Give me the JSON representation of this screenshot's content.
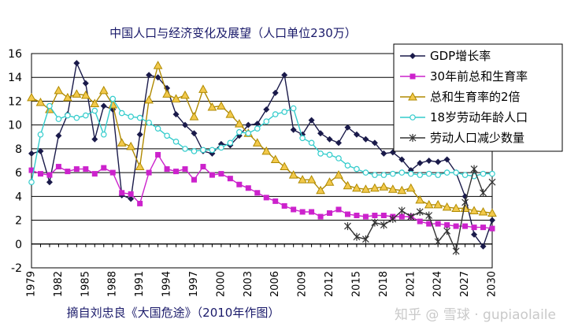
{
  "chart_data": {
    "type": "line",
    "title": "中国人口与经济变化及展望（人口单位230万）",
    "source": "摘自刘忠良《大国危途》（2010年作图）",
    "xlabel": "",
    "ylabel": "",
    "xlim": [
      1979,
      2030
    ],
    "ylim": [
      -2,
      16
    ],
    "grid": true,
    "legend_position": "top-right",
    "x_ticks": [
      1979,
      1982,
      1985,
      1988,
      1991,
      1994,
      1997,
      2000,
      2003,
      2006,
      2009,
      2012,
      2015,
      2018,
      2021,
      2024,
      2027,
      2030
    ],
    "y_ticks": [
      -2,
      0,
      2,
      4,
      6,
      8,
      10,
      12,
      14,
      16
    ],
    "series": [
      {
        "name": "GDP增长率",
        "color": "#1a1a4a",
        "marker": "diamond",
        "points": [
          [
            1979,
            7.6
          ],
          [
            1980,
            7.8
          ],
          [
            1981,
            5.2
          ],
          [
            1982,
            9.1
          ],
          [
            1983,
            10.9
          ],
          [
            1984,
            15.2
          ],
          [
            1985,
            13.5
          ],
          [
            1986,
            8.8
          ],
          [
            1987,
            11.6
          ],
          [
            1988,
            11.3
          ],
          [
            1989,
            4.1
          ],
          [
            1990,
            3.8
          ],
          [
            1991,
            9.2
          ],
          [
            1992,
            14.2
          ],
          [
            1993,
            14.0
          ],
          [
            1994,
            13.1
          ],
          [
            1995,
            10.9
          ],
          [
            1996,
            10.0
          ],
          [
            1997,
            9.3
          ],
          [
            1998,
            7.8
          ],
          [
            1999,
            7.6
          ],
          [
            2000,
            8.4
          ],
          [
            2001,
            8.3
          ],
          [
            2002,
            9.1
          ],
          [
            2003,
            10.0
          ],
          [
            2004,
            10.1
          ],
          [
            2005,
            11.3
          ],
          [
            2006,
            12.7
          ],
          [
            2007,
            14.2
          ],
          [
            2008,
            9.6
          ],
          [
            2009,
            9.2
          ],
          [
            2010,
            10.4
          ],
          [
            2011,
            9.3
          ],
          [
            2012,
            8.8
          ],
          [
            2013,
            8.5
          ],
          [
            2014,
            9.8
          ],
          [
            2015,
            9.2
          ],
          [
            2016,
            8.8
          ],
          [
            2017,
            8.5
          ],
          [
            2018,
            7.6
          ],
          [
            2019,
            7.7
          ],
          [
            2020,
            7.1
          ],
          [
            2021,
            6.2
          ],
          [
            2022,
            6.8
          ],
          [
            2023,
            7.0
          ],
          [
            2024,
            6.9
          ],
          [
            2025,
            7.1
          ],
          [
            2026,
            6.0
          ],
          [
            2027,
            4.0
          ],
          [
            2028,
            0.8
          ],
          [
            2029,
            -0.2
          ],
          [
            2030,
            2.0
          ]
        ]
      },
      {
        "name": "30年前总和生育率",
        "color": "#cc22cc",
        "marker": "square",
        "points": [
          [
            1979,
            6.2
          ],
          [
            1980,
            5.9
          ],
          [
            1981,
            5.8
          ],
          [
            1982,
            6.5
          ],
          [
            1983,
            6.1
          ],
          [
            1984,
            6.3
          ],
          [
            1985,
            6.3
          ],
          [
            1986,
            5.9
          ],
          [
            1987,
            6.4
          ],
          [
            1988,
            6.0
          ],
          [
            1989,
            4.3
          ],
          [
            1990,
            4.2
          ],
          [
            1991,
            3.4
          ],
          [
            1992,
            6.0
          ],
          [
            1993,
            7.5
          ],
          [
            1994,
            6.3
          ],
          [
            1995,
            6.1
          ],
          [
            1996,
            6.3
          ],
          [
            1997,
            5.4
          ],
          [
            1998,
            6.5
          ],
          [
            1999,
            5.8
          ],
          [
            2000,
            5.9
          ],
          [
            2001,
            5.5
          ],
          [
            2002,
            5.0
          ],
          [
            2003,
            4.7
          ],
          [
            2004,
            4.3
          ],
          [
            2005,
            3.9
          ],
          [
            2006,
            3.6
          ],
          [
            2007,
            3.2
          ],
          [
            2008,
            2.9
          ],
          [
            2009,
            2.7
          ],
          [
            2010,
            2.7
          ],
          [
            2011,
            2.3
          ],
          [
            2012,
            2.6
          ],
          [
            2013,
            2.9
          ],
          [
            2014,
            2.5
          ],
          [
            2015,
            2.4
          ],
          [
            2016,
            2.3
          ],
          [
            2017,
            2.4
          ],
          [
            2018,
            2.4
          ],
          [
            2019,
            2.3
          ],
          [
            2020,
            2.3
          ],
          [
            2021,
            2.3
          ],
          [
            2022,
            1.9
          ],
          [
            2023,
            1.7
          ],
          [
            2024,
            1.7
          ],
          [
            2025,
            1.6
          ],
          [
            2026,
            1.5
          ],
          [
            2027,
            1.5
          ],
          [
            2028,
            1.4
          ],
          [
            2029,
            1.4
          ],
          [
            2030,
            1.3
          ]
        ]
      },
      {
        "name": "总和生育率的2倍",
        "color": "#b08a00",
        "marker": "triangle",
        "points": [
          [
            1979,
            12.3
          ],
          [
            1980,
            11.9
          ],
          [
            1981,
            11.3
          ],
          [
            1982,
            12.9
          ],
          [
            1983,
            12.3
          ],
          [
            1984,
            12.6
          ],
          [
            1985,
            12.5
          ],
          [
            1986,
            11.8
          ],
          [
            1987,
            12.9
          ],
          [
            1988,
            11.7
          ],
          [
            1989,
            8.5
          ],
          [
            1990,
            8.2
          ],
          [
            1991,
            6.5
          ],
          [
            1992,
            12.1
          ],
          [
            1993,
            15.0
          ],
          [
            1994,
            12.6
          ],
          [
            1995,
            12.2
          ],
          [
            1996,
            12.5
          ],
          [
            1997,
            10.7
          ],
          [
            1998,
            13.0
          ],
          [
            1999,
            11.5
          ],
          [
            2000,
            11.6
          ],
          [
            2001,
            10.9
          ],
          [
            2002,
            10.1
          ],
          [
            2003,
            9.3
          ],
          [
            2004,
            8.5
          ],
          [
            2005,
            7.8
          ],
          [
            2006,
            7.1
          ],
          [
            2007,
            6.5
          ],
          [
            2008,
            5.8
          ],
          [
            2009,
            5.4
          ],
          [
            2010,
            5.4
          ],
          [
            2011,
            4.5
          ],
          [
            2012,
            5.2
          ],
          [
            2013,
            5.8
          ],
          [
            2014,
            4.9
          ],
          [
            2015,
            4.7
          ],
          [
            2016,
            4.6
          ],
          [
            2017,
            4.7
          ],
          [
            2018,
            4.8
          ],
          [
            2019,
            4.6
          ],
          [
            2020,
            4.5
          ],
          [
            2021,
            4.7
          ],
          [
            2022,
            3.7
          ],
          [
            2023,
            3.3
          ],
          [
            2024,
            3.3
          ],
          [
            2025,
            3.1
          ],
          [
            2026,
            3.0
          ],
          [
            2027,
            3.0
          ],
          [
            2028,
            2.8
          ],
          [
            2029,
            2.7
          ],
          [
            2030,
            2.6
          ]
        ]
      },
      {
        "name": "18岁劳动年龄人口",
        "color": "#33cccc",
        "marker": "circle",
        "points": [
          [
            1979,
            5.2
          ],
          [
            1980,
            9.2
          ],
          [
            1981,
            11.6
          ],
          [
            1982,
            10.5
          ],
          [
            1983,
            10.8
          ],
          [
            1984,
            10.6
          ],
          [
            1985,
            10.8
          ],
          [
            1986,
            11.2
          ],
          [
            1987,
            9.2
          ],
          [
            1988,
            12.2
          ],
          [
            1989,
            11.0
          ],
          [
            1990,
            10.7
          ],
          [
            1991,
            10.6
          ],
          [
            1992,
            10.2
          ],
          [
            1993,
            9.7
          ],
          [
            1994,
            9.1
          ],
          [
            1995,
            8.6
          ],
          [
            1996,
            8.0
          ],
          [
            1997,
            7.8
          ],
          [
            1998,
            7.9
          ],
          [
            1999,
            7.9
          ],
          [
            2000,
            8.1
          ],
          [
            2001,
            8.5
          ],
          [
            2002,
            9.4
          ],
          [
            2003,
            9.3
          ],
          [
            2004,
            9.7
          ],
          [
            2005,
            10.3
          ],
          [
            2006,
            10.9
          ],
          [
            2007,
            11.1
          ],
          [
            2008,
            11.4
          ],
          [
            2009,
            8.9
          ],
          [
            2010,
            8.5
          ],
          [
            2011,
            7.6
          ],
          [
            2012,
            7.5
          ],
          [
            2013,
            7.2
          ],
          [
            2014,
            6.6
          ],
          [
            2015,
            6.3
          ],
          [
            2016,
            6.0
          ],
          [
            2017,
            5.8
          ],
          [
            2018,
            5.8
          ],
          [
            2019,
            5.9
          ],
          [
            2020,
            6.0
          ],
          [
            2021,
            5.9
          ],
          [
            2022,
            5.8
          ],
          [
            2023,
            5.9
          ],
          [
            2024,
            5.8
          ],
          [
            2025,
            6.0
          ],
          [
            2026,
            6.0
          ],
          [
            2027,
            5.8
          ],
          [
            2028,
            5.7
          ],
          [
            2029,
            5.9
          ],
          [
            2030,
            5.9
          ]
        ]
      },
      {
        "name": "劳动人口减少数量",
        "color": "#333333",
        "marker": "star",
        "points": [
          [
            2014,
            1.5
          ],
          [
            2015,
            0.6
          ],
          [
            2016,
            0.4
          ],
          [
            2017,
            1.8
          ],
          [
            2018,
            1.6
          ],
          [
            2019,
            2.1
          ],
          [
            2020,
            2.8
          ],
          [
            2021,
            2.3
          ],
          [
            2022,
            2.7
          ],
          [
            2023,
            2.4
          ],
          [
            2024,
            0.2
          ],
          [
            2025,
            1.1
          ],
          [
            2026,
            -0.6
          ],
          [
            2027,
            3.5
          ],
          [
            2028,
            6.3
          ],
          [
            2029,
            4.3
          ],
          [
            2030,
            5.2
          ]
        ]
      }
    ]
  },
  "watermark": "知乎 @ 雪球 · gupiaolaile"
}
